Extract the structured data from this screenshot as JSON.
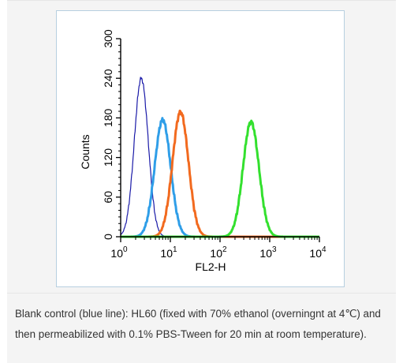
{
  "chart_data": {
    "type": "line",
    "xlabel": "FL2-H",
    "ylabel": "Counts",
    "x_scale": "log",
    "xlim": [
      1,
      10000
    ],
    "ylim": [
      0,
      300
    ],
    "x_ticks": [
      {
        "base": "10",
        "exp": "0"
      },
      {
        "base": "10",
        "exp": "1"
      },
      {
        "base": "10",
        "exp": "2"
      },
      {
        "base": "10",
        "exp": "3"
      },
      {
        "base": "10",
        "exp": "4"
      }
    ],
    "y_ticks": [
      "0",
      "60",
      "120",
      "180",
      "240",
      "300"
    ],
    "grid": false,
    "legend": "none",
    "series": [
      {
        "color": "#1a1aa8",
        "stroke": 1.2,
        "peak_x": 2.6,
        "peak_y": 240,
        "log_width": 0.14
      },
      {
        "color": "#2f9ee8",
        "stroke": 3.0,
        "peak_x": 7.0,
        "peak_y": 177,
        "log_width": 0.16
      },
      {
        "color": "#f26a1f",
        "stroke": 3.0,
        "peak_x": 16.0,
        "peak_y": 189,
        "log_width": 0.16
      },
      {
        "color": "#33e02e",
        "stroke": 3.0,
        "peak_x": 420,
        "peak_y": 174,
        "log_width": 0.16
      }
    ]
  },
  "caption": {
    "text": "Blank control (blue line): HL60 (fixed with 70% ethanol (overningnt at 4℃) and then permeabilized with 0.1% PBS-Tween for 20 min at room temperature)."
  }
}
